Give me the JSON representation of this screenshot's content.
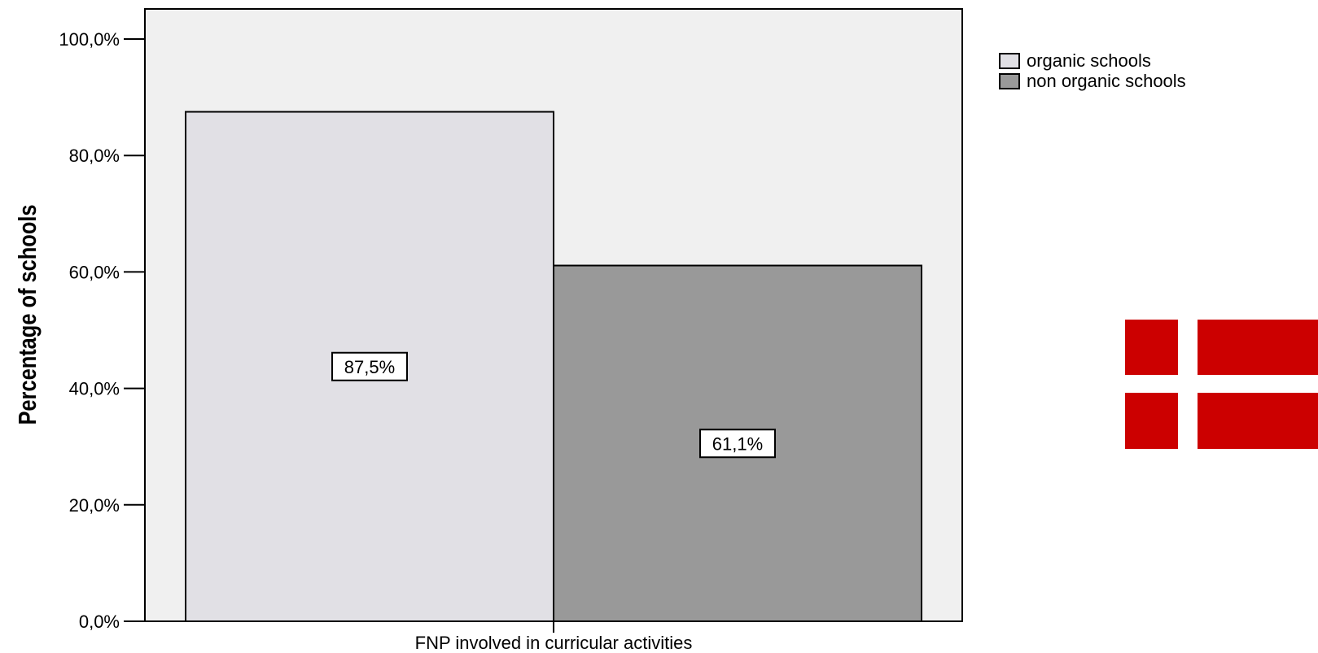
{
  "chart_data": {
    "type": "bar",
    "categories": [
      "FNP involved in curricular activities"
    ],
    "series": [
      {
        "name": "organic schools",
        "values": [
          87.5
        ],
        "label": "87,5%",
        "color": "#e1e0e5"
      },
      {
        "name": "non organic schools",
        "values": [
          61.1
        ],
        "label": "61,1%",
        "color": "#999999"
      }
    ],
    "ylabel": "Percentage of schools",
    "xlabel": "",
    "ylim": [
      0,
      100
    ],
    "yticks": [
      0,
      20,
      40,
      60,
      80,
      100
    ],
    "ytick_labels": [
      "0,0%",
      "20,0%",
      "40,0%",
      "60,0%",
      "80,0%",
      "100,0%"
    ],
    "plot_background": "#f0f0f0",
    "grid": false,
    "legend_position": "top-right"
  },
  "decoration": {
    "flag": {
      "icon": "denmark-flag-icon",
      "red": "#cc0000",
      "cross": "#ffffff"
    }
  }
}
